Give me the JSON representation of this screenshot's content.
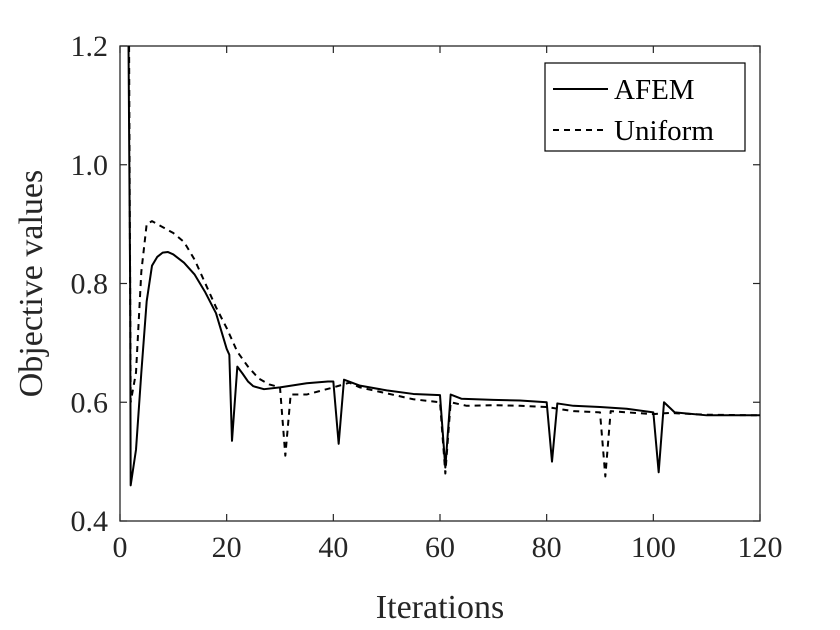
{
  "chart_data": {
    "type": "line",
    "title": "",
    "xlabel": "Iterations",
    "ylabel": "Objective values",
    "xlim": [
      0,
      120
    ],
    "ylim": [
      0.4,
      1.2
    ],
    "xticks": [
      0,
      20,
      40,
      60,
      80,
      100,
      120
    ],
    "yticks": [
      0.4,
      0.6,
      0.8,
      1.0,
      1.2
    ],
    "xtick_labels": [
      "0",
      "20",
      "40",
      "60",
      "80",
      "100",
      "120"
    ],
    "ytick_labels": [
      "0.4",
      "0.6",
      "0.8",
      "1.0",
      "1.2"
    ],
    "grid": false,
    "legend": {
      "position": "top-right",
      "entries": [
        "AFEM",
        "Uniform"
      ]
    },
    "series": [
      {
        "name": "AFEM",
        "style": "solid",
        "color": "#000000",
        "points": [
          [
            1.6,
            1.2
          ],
          [
            1.9,
            0.8
          ],
          [
            2.0,
            0.46
          ],
          [
            3,
            0.52
          ],
          [
            4,
            0.65
          ],
          [
            5,
            0.77
          ],
          [
            6,
            0.83
          ],
          [
            7,
            0.845
          ],
          [
            8,
            0.852
          ],
          [
            9,
            0.853
          ],
          [
            10,
            0.849
          ],
          [
            12,
            0.835
          ],
          [
            14,
            0.815
          ],
          [
            16,
            0.785
          ],
          [
            18,
            0.75
          ],
          [
            20,
            0.69
          ],
          [
            20.5,
            0.68
          ],
          [
            21,
            0.535
          ],
          [
            22,
            0.66
          ],
          [
            23,
            0.648
          ],
          [
            24,
            0.635
          ],
          [
            25,
            0.627
          ],
          [
            27,
            0.622
          ],
          [
            30,
            0.625
          ],
          [
            35,
            0.632
          ],
          [
            39,
            0.635
          ],
          [
            40,
            0.635
          ],
          [
            41,
            0.53
          ],
          [
            42,
            0.638
          ],
          [
            45,
            0.628
          ],
          [
            50,
            0.62
          ],
          [
            55,
            0.614
          ],
          [
            60,
            0.612
          ],
          [
            61,
            0.49
          ],
          [
            62,
            0.613
          ],
          [
            64,
            0.606
          ],
          [
            70,
            0.604
          ],
          [
            75,
            0.603
          ],
          [
            80,
            0.6
          ],
          [
            81,
            0.5
          ],
          [
            82,
            0.598
          ],
          [
            85,
            0.594
          ],
          [
            90,
            0.592
          ],
          [
            95,
            0.589
          ],
          [
            100,
            0.583
          ],
          [
            101,
            0.482
          ],
          [
            102,
            0.6
          ],
          [
            104,
            0.583
          ],
          [
            110,
            0.578
          ],
          [
            120,
            0.578
          ]
        ]
      },
      {
        "name": "Uniform",
        "style": "dashed",
        "color": "#000000",
        "points": [
          [
            1.7,
            1.2
          ],
          [
            2.0,
            0.6
          ],
          [
            3,
            0.65
          ],
          [
            4,
            0.82
          ],
          [
            5,
            0.9
          ],
          [
            6,
            0.905
          ],
          [
            8,
            0.895
          ],
          [
            10,
            0.885
          ],
          [
            12,
            0.87
          ],
          [
            14,
            0.84
          ],
          [
            16,
            0.8
          ],
          [
            18,
            0.76
          ],
          [
            20,
            0.725
          ],
          [
            22,
            0.685
          ],
          [
            24,
            0.66
          ],
          [
            26,
            0.64
          ],
          [
            28,
            0.63
          ],
          [
            30,
            0.625
          ],
          [
            31,
            0.51
          ],
          [
            32,
            0.613
          ],
          [
            35,
            0.613
          ],
          [
            40,
            0.625
          ],
          [
            43,
            0.633
          ],
          [
            45,
            0.625
          ],
          [
            50,
            0.615
          ],
          [
            55,
            0.605
          ],
          [
            60,
            0.6
          ],
          [
            61,
            0.48
          ],
          [
            62,
            0.6
          ],
          [
            65,
            0.594
          ],
          [
            70,
            0.595
          ],
          [
            75,
            0.594
          ],
          [
            80,
            0.592
          ],
          [
            85,
            0.585
          ],
          [
            90,
            0.583
          ],
          [
            91,
            0.475
          ],
          [
            92,
            0.585
          ],
          [
            95,
            0.583
          ],
          [
            100,
            0.58
          ],
          [
            103,
            0.582
          ],
          [
            110,
            0.579
          ],
          [
            120,
            0.578
          ]
        ]
      }
    ]
  }
}
